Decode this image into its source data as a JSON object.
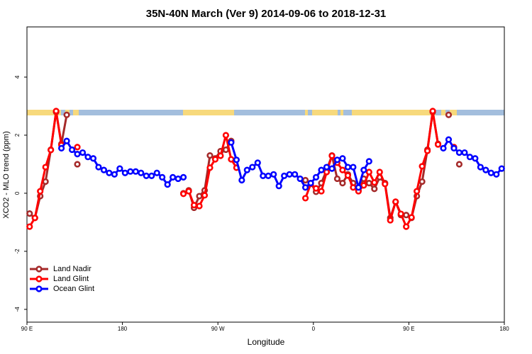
{
  "chart_data": {
    "type": "line",
    "title": "35N-40N March (Ver 9)   2014-09-06 to 2018-12-31",
    "x_label": "Longitude",
    "y_label": "XCO2 - MLO trend (ppm)",
    "xlim": [
      90,
      540
    ],
    "ylim": [
      -4.44,
      5.73
    ],
    "xticks": [
      {
        "value": 90,
        "label": "90 E"
      },
      180,
      {
        "value": 270,
        "label": "90 W"
      },
      {
        "value": 360,
        "label": "0"
      },
      {
        "value": 450,
        "label": "90 E"
      },
      {
        "value": 540,
        "label": "180"
      }
    ],
    "yticks": [
      -4,
      -2,
      0,
      2,
      4
    ],
    "legend": "bottom-left",
    "series": [
      {
        "name": "Land Nadir",
        "color": "#a52a2a",
        "x": [
          92.5,
          97.5,
          102.5,
          107.5,
          112.5,
          117.5,
          122.5,
          127.5,
          132.5,
          137.5,
          142.5,
          237.5,
          242.5,
          247.5,
          252.5,
          257.5,
          262.5,
          267.5,
          272.5,
          277.5,
          282.5,
          287.5,
          352.5,
          357.5,
          362.5,
          367.5,
          372.5,
          377.5,
          382.5,
          387.5,
          392.5,
          397.5,
          402.5,
          407.5,
          412.5,
          417.5,
          422.5,
          427.5,
          432.5,
          437.5,
          442.5,
          447.5,
          452.5,
          457.5,
          462.5,
          467.5,
          472.5,
          477.5,
          482.5,
          487.5,
          492.5,
          497.5
        ],
        "values": [
          -0.7,
          -0.85,
          -0.1,
          0.4,
          1.5,
          2.8,
          1.7,
          2.7,
          null,
          1.0,
          null,
          0.0,
          0.1,
          -0.5,
          -0.1,
          0.1,
          1.3,
          1.2,
          1.45,
          1.5,
          1.8,
          null,
          0.45,
          0.35,
          0.05,
          0.35,
          0.8,
          1.3,
          0.5,
          0.35,
          0.65,
          0.35,
          0.1,
          0.5,
          0.35,
          0.15,
          0.55,
          0.35,
          -0.85,
          -0.3,
          -0.75,
          -0.75,
          -0.85,
          -0.1,
          0.4,
          1.5,
          2.8,
          1.7,
          null,
          2.7,
          null,
          1.0
        ]
      },
      {
        "name": "Land Glint",
        "color": "#ff0000",
        "x": [
          92.5,
          97.5,
          102.5,
          107.5,
          112.5,
          117.5,
          122.5,
          127.5,
          137.5,
          142.5,
          237.5,
          242.5,
          247.5,
          252.5,
          257.5,
          262.5,
          267.5,
          272.5,
          277.5,
          282.5,
          287.5,
          292.5,
          352.5,
          357.5,
          362.5,
          367.5,
          372.5,
          377.5,
          382.5,
          387.5,
          392.5,
          397.5,
          402.5,
          407.5,
          412.5,
          417.5,
          422.5,
          427.5,
          432.5,
          437.5,
          442.5,
          447.5,
          452.5,
          457.5,
          462.5,
          467.5,
          472.5,
          477.5,
          482.5,
          492.5
        ],
        "values": [
          -1.15,
          -0.85,
          0.07,
          0.9,
          1.49,
          2.83,
          1.66,
          null,
          1.59,
          null,
          -0.02,
          0.07,
          -0.41,
          -0.44,
          -0.07,
          0.88,
          1.17,
          1.29,
          2.0,
          1.17,
          0.88,
          null,
          -0.17,
          0.32,
          0.17,
          0.07,
          0.73,
          1.29,
          1.05,
          0.8,
          0.61,
          0.2,
          0.07,
          0.27,
          0.73,
          0.37,
          0.73,
          0.32,
          -0.93,
          -0.29,
          -0.71,
          -1.15,
          -0.83,
          0.07,
          0.93,
          1.46,
          2.83,
          1.68,
          null,
          1.59
        ]
      },
      {
        "name": "Ocean Glint",
        "color": "#0000ff",
        "x": [
          122.5,
          127.5,
          132.5,
          137.5,
          142.5,
          147.5,
          152.5,
          157.5,
          162.5,
          167.5,
          172.5,
          177.5,
          182.5,
          187.5,
          192.5,
          197.5,
          202.5,
          207.5,
          212.5,
          217.5,
          222.5,
          227.5,
          232.5,
          237.5,
          267.5,
          282.5,
          287.5,
          292.5,
          297.5,
          302.5,
          307.5,
          312.5,
          317.5,
          322.5,
          327.5,
          332.5,
          337.5,
          342.5,
          347.5,
          352.5,
          357.5,
          362.5,
          367.5,
          372.5,
          377.5,
          382.5,
          387.5,
          392.5,
          397.5,
          402.5,
          407.5,
          412.5,
          442.5,
          482.5,
          487.5,
          492.5,
          497.5,
          502.5,
          507.5,
          512.5,
          517.5,
          522.5,
          527.5,
          532.5,
          537.5
        ],
        "values": [
          1.55,
          1.8,
          1.5,
          1.35,
          1.4,
          1.25,
          1.2,
          0.9,
          0.8,
          0.7,
          0.65,
          0.85,
          0.7,
          0.75,
          0.75,
          0.7,
          0.6,
          0.6,
          0.7,
          0.55,
          0.3,
          0.55,
          0.5,
          0.55,
          null,
          1.75,
          1.15,
          0.45,
          0.8,
          0.9,
          1.05,
          0.6,
          0.6,
          0.65,
          0.25,
          0.6,
          0.65,
          0.65,
          0.5,
          0.2,
          0.35,
          0.55,
          0.8,
          0.9,
          0.85,
          1.15,
          1.2,
          0.9,
          0.9,
          0.2,
          0.8,
          1.1,
          null,
          1.55,
          1.85,
          1.55,
          1.4,
          1.4,
          1.25,
          1.2,
          0.9,
          0.8,
          0.7,
          0.65,
          0.85
        ]
      }
    ]
  }
}
